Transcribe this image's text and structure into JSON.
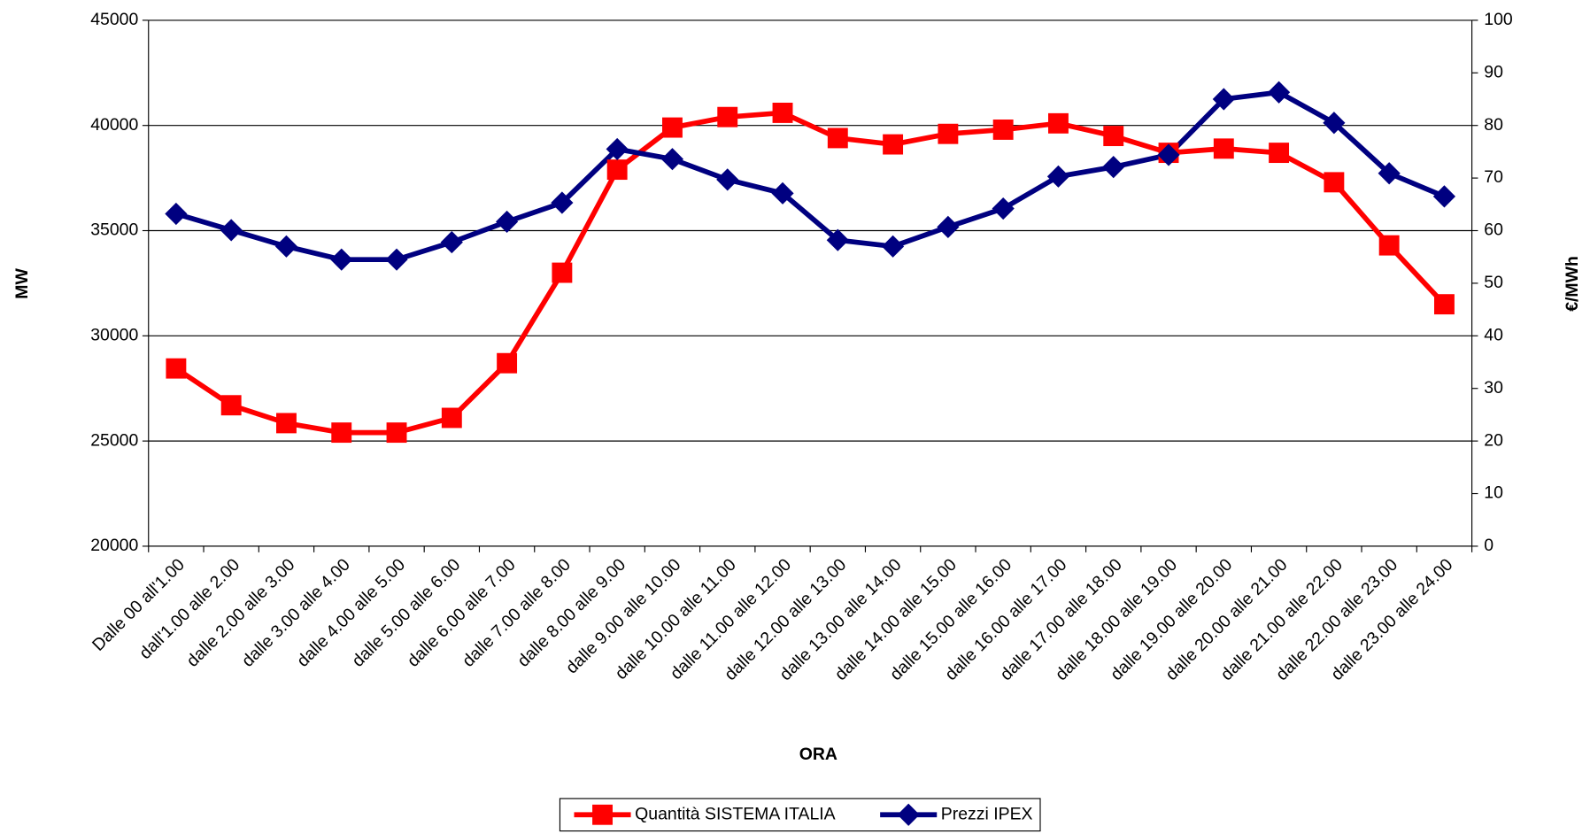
{
  "chart_data": {
    "type": "line",
    "x_label": "ORA",
    "y_label": "MW",
    "y2_label": "€/MWh",
    "categories": [
      "Dalle 00 all'1.00",
      "dall'1.00 alle 2.00",
      "dalle 2.00 alle 3.00",
      "dalle 3.00 alle 4.00",
      "dalle 4.00 alle 5.00",
      "dalle 5.00 alle 6.00",
      "dalle 6.00 alle 7.00",
      "dalle 7.00 alle 8.00",
      "dalle 8.00 alle 9.00",
      "dalle 9.00 alle 10.00",
      "dalle 10.00 alle 11.00",
      "dalle 11.00 alle 12.00",
      "dalle 12.00 alle 13.00",
      "dalle 13.00 alle 14.00",
      "dalle 14.00 alle 15.00",
      "dalle 15.00 alle 16.00",
      "dalle 16.00 alle 17.00",
      "dalle 17.00 alle 18.00",
      "dalle 18.00 alle 19.00",
      "dalle 19.00 alle 20.00",
      "dalle 20.00 alle 21.00",
      "dalle 21.00 alle 22.00",
      "dalle 22.00 alle 23.00",
      "dalle 23.00 alle 24.00"
    ],
    "series": [
      {
        "name": "Quantità SISTEMA ITALIA",
        "color": "#ff0000",
        "marker": "square",
        "values": [
          28450,
          26700,
          25850,
          25400,
          25400,
          26100,
          28700,
          33000,
          37900,
          39900,
          40400,
          40600,
          39400,
          39100,
          39600,
          39800,
          40100,
          39500,
          38700,
          38900,
          38700,
          37300,
          34300,
          31500
        ]
      },
      {
        "name": "Prezzi IPEX",
        "color": "#000080",
        "marker": "diamond",
        "axis": "y2",
        "values": [
          63.2,
          60.1,
          57.0,
          54.5,
          54.5,
          57.8,
          61.7,
          65.3,
          75.5,
          73.6,
          69.7,
          67.1,
          58.2,
          57.0,
          60.7,
          64.2,
          70.3,
          72.1,
          74.4,
          85.0,
          86.3,
          80.5,
          70.9,
          66.5
        ]
      }
    ],
    "ylim": [
      20000,
      45000
    ],
    "yticks": [
      20000,
      25000,
      30000,
      35000,
      40000,
      45000
    ],
    "y2lim": [
      0,
      100
    ],
    "y2ticks": [
      0,
      10,
      20,
      30,
      40,
      50,
      60,
      70,
      80,
      90,
      100
    ],
    "grid": true,
    "legend": "bottom"
  }
}
